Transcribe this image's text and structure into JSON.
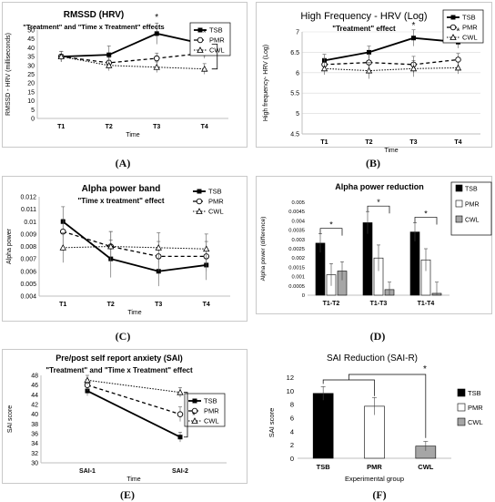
{
  "panels": [
    {
      "id": "A",
      "label": "(A)",
      "type": "line",
      "title": "RMSSD (HRV)",
      "subtitle": "\"Treatment\" and \"Time x Treatment\" effects",
      "ylabel": "RMSSD - HRV (milliseconds)",
      "xlabel": "Time",
      "categories": [
        "T1",
        "T2",
        "T3",
        "T4"
      ],
      "ylim": [
        0,
        50
      ],
      "yticks": [
        0,
        5,
        10,
        15,
        20,
        25,
        30,
        35,
        40,
        45,
        50
      ],
      "legend": [
        "TSB",
        "PMR",
        "CWL"
      ],
      "series": [
        {
          "name": "TSB",
          "values": [
            35,
            36,
            48,
            42
          ],
          "err": [
            3,
            5,
            6,
            4
          ]
        },
        {
          "name": "PMR",
          "values": [
            35,
            31.5,
            34,
            37
          ],
          "err": [
            3,
            3,
            3,
            3
          ]
        },
        {
          "name": "CWL",
          "values": [
            35,
            30,
            29,
            28
          ],
          "err": [
            3,
            3,
            3,
            3
          ]
        }
      ],
      "annotations": [
        "*",
        "*"
      ]
    },
    {
      "id": "B",
      "label": "(B)",
      "type": "line",
      "title": "High Frequency - HRV (Log)",
      "subtitle": "\"Treatment\" effect",
      "ylabel": "High frequency- HRV (Log)",
      "xlabel": "Time",
      "categories": [
        "T1",
        "T2",
        "T3",
        "T4"
      ],
      "ylim": [
        4.5,
        7.0
      ],
      "yticks": [
        4.5,
        5,
        5.5,
        6,
        6.5,
        7
      ],
      "legend": [
        "TSB",
        "PMR",
        "CWL"
      ],
      "series": [
        {
          "name": "TSB",
          "values": [
            6.3,
            6.5,
            6.85,
            6.75
          ],
          "err": [
            0.15,
            0.15,
            0.2,
            0.15
          ]
        },
        {
          "name": "PMR",
          "values": [
            6.2,
            6.25,
            6.2,
            6.32
          ],
          "err": [
            0.15,
            0.2,
            0.2,
            0.15
          ]
        },
        {
          "name": "CWL",
          "values": [
            6.1,
            6.05,
            6.1,
            6.12
          ],
          "err": [
            0.15,
            0.2,
            0.2,
            0.15
          ]
        }
      ],
      "annotations": [
        "*",
        "*"
      ]
    },
    {
      "id": "C",
      "label": "(C)",
      "type": "line",
      "title": "Alpha power band",
      "subtitle": "\"Time x treatment\" effect",
      "ylabel": "Alpha power",
      "xlabel": "Time",
      "categories": [
        "T1",
        "T2",
        "T3",
        "T4"
      ],
      "ylim": [
        0.004,
        0.012
      ],
      "ytick_labels": [
        "0.004",
        "0.005",
        "0.006",
        "0.007",
        "0.008",
        "0.009",
        "0.01",
        "0.011",
        "0.012"
      ],
      "legend": [
        "TSB",
        "PMR",
        "CWL"
      ],
      "series": [
        {
          "name": "TSB",
          "values": [
            0.01,
            0.007,
            0.006,
            0.0065
          ],
          "err": [
            0.0012,
            0.0015,
            0.0012,
            0.0012
          ]
        },
        {
          "name": "PMR",
          "values": [
            0.0092,
            0.008,
            0.0072,
            0.0072
          ],
          "err": [
            0.001,
            0.0012,
            0.0012,
            0.0012
          ]
        },
        {
          "name": "CWL",
          "values": [
            0.0079,
            0.008,
            0.0079,
            0.0078
          ],
          "err": [
            0.0012,
            0.0012,
            0.0012,
            0.0012
          ]
        }
      ]
    },
    {
      "id": "D",
      "label": "(D)",
      "type": "bar",
      "title": "Alpha power reduction",
      "ylabel": "Alpha power (difference)",
      "categories": [
        "T1-T2",
        "T1-T3",
        "T1-T4"
      ],
      "ylim": [
        0,
        0.005
      ],
      "ytick_labels": [
        "0",
        "0.0005",
        "0.001",
        "0.0015",
        "0.002",
        "0.0025",
        "0.003",
        "0.0035",
        "0.004",
        "0.0045",
        "0.005"
      ],
      "legend": [
        "TSB",
        "PMR",
        "CWL"
      ],
      "series": [
        {
          "name": "TSB",
          "values": [
            0.0028,
            0.0039,
            0.0034
          ],
          "err": [
            0.0005,
            0.0006,
            0.0005
          ]
        },
        {
          "name": "PMR",
          "values": [
            0.0011,
            0.002,
            0.0019
          ],
          "err": [
            0.0006,
            0.0007,
            0.0006
          ]
        },
        {
          "name": "CWL",
          "values": [
            0.0013,
            0.0003,
            0.0001
          ],
          "err": [
            0.0005,
            0.0004,
            0.0006
          ]
        }
      ],
      "annotations": [
        "*",
        "*",
        "*"
      ]
    },
    {
      "id": "E",
      "label": "(E)",
      "type": "line",
      "title": "Pre/post self report anxiety (SAI)",
      "subtitle": "\"Treatment\" and \"Time x Treatment\" effect",
      "ylabel": "SAI score",
      "xlabel": "Time",
      "categories": [
        "SAI-1",
        "SAI-2"
      ],
      "ylim": [
        30,
        48
      ],
      "yticks": [
        30,
        32,
        34,
        36,
        38,
        40,
        42,
        44,
        46,
        48
      ],
      "legend": [
        "TSB",
        "PMR",
        "CWL"
      ],
      "series": [
        {
          "name": "TSB",
          "values": [
            44.8,
            35.3
          ],
          "err": [
            1,
            1
          ]
        },
        {
          "name": "PMR",
          "values": [
            46,
            40
          ],
          "err": [
            1.2,
            1.5
          ]
        },
        {
          "name": "CWL",
          "values": [
            47,
            44.5
          ],
          "err": [
            1,
            1
          ]
        }
      ],
      "annotations": [
        "*"
      ]
    },
    {
      "id": "F",
      "label": "(F)",
      "type": "bar",
      "title": "SAI Reduction (SAI-R)",
      "ylabel": "SAI score",
      "xlabel": "Experimental group",
      "categories": [
        "TSB",
        "PMR",
        "CWL"
      ],
      "ylim": [
        0,
        12
      ],
      "yticks": [
        0,
        2,
        4,
        6,
        8,
        10,
        12
      ],
      "legend": [
        "TSB",
        "PMR",
        "CWL"
      ],
      "values": [
        9.6,
        7.7,
        1.8
      ],
      "err": [
        1,
        1.3,
        0.7
      ],
      "annotations": [
        "*"
      ]
    }
  ],
  "colors": {
    "tsb": "#000000",
    "pmr": "#ffffff",
    "cwl": "#a6a6a6",
    "axis": "#bfbfbf",
    "grid": "#d9d9d9"
  }
}
